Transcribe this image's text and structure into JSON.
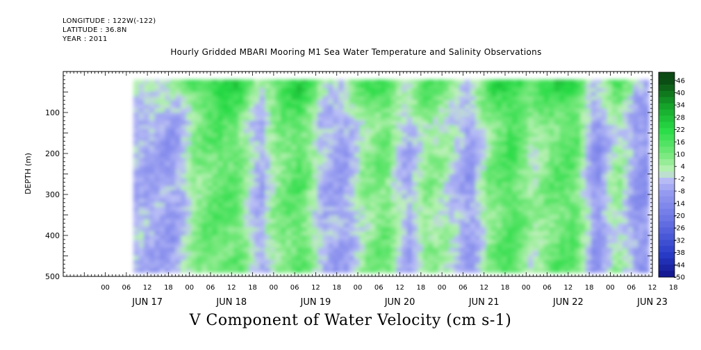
{
  "header": {
    "longitude": "LONGITUDE : 122W(-122)",
    "latitude": "LATITUDE : 36.8N",
    "year": "YEAR : 2011"
  },
  "chart_data": {
    "type": "heatmap",
    "title": "Hourly Gridded MBARI Mooring M1 Sea Water Temperature and Salinity Observations",
    "xlabel": "V Component of Water Velocity (cm s-1)",
    "ylabel": "DEPTH (m)",
    "ylim": [
      500,
      0
    ],
    "y_ticks": [
      "100",
      "200",
      "300",
      "400",
      "500"
    ],
    "x_hour_ticks": [
      "00",
      "06",
      "12",
      "18",
      "00",
      "06",
      "12",
      "18",
      "00",
      "06",
      "12",
      "18",
      "00",
      "06",
      "12",
      "18",
      "00",
      "06",
      "12",
      "18",
      "00",
      "06",
      "12",
      "18",
      "00",
      "06",
      "12",
      "18"
    ],
    "x_day_labels": [
      "JUN 17",
      "JUN 18",
      "JUN 19",
      "JUN 20",
      "JUN 21",
      "JUN 22",
      "JUN 23"
    ],
    "colorbar": {
      "levels": [
        "46",
        "40",
        "34",
        "28",
        "22",
        "16",
        "10",
        "4",
        "-2",
        "-8",
        "-14",
        "-20",
        "-26",
        "-32",
        "-38",
        "-44",
        "-50"
      ],
      "min": -50,
      "max": 50,
      "step": 3
    },
    "data_depth_range": [
      20,
      490
    ],
    "data_time_range_hours": [
      8,
      154
    ],
    "hourly_mean_velocity": [
      {
        "hour": 8,
        "v": -4
      },
      {
        "hour": 14,
        "v": -6
      },
      {
        "hour": 20,
        "v": -8
      },
      {
        "hour": 26,
        "v": 8
      },
      {
        "hour": 32,
        "v": 14
      },
      {
        "hour": 38,
        "v": 12
      },
      {
        "hour": 44,
        "v": -6
      },
      {
        "hour": 50,
        "v": 10
      },
      {
        "hour": 56,
        "v": 14
      },
      {
        "hour": 62,
        "v": -4
      },
      {
        "hour": 68,
        "v": -8
      },
      {
        "hour": 74,
        "v": 6
      },
      {
        "hour": 80,
        "v": 12
      },
      {
        "hour": 86,
        "v": -6
      },
      {
        "hour": 92,
        "v": 8
      },
      {
        "hour": 98,
        "v": 2
      },
      {
        "hour": 104,
        "v": -10
      },
      {
        "hour": 110,
        "v": 10
      },
      {
        "hour": 116,
        "v": 16
      },
      {
        "hour": 122,
        "v": 4
      },
      {
        "hour": 128,
        "v": 12
      },
      {
        "hour": 134,
        "v": 14
      },
      {
        "hour": 140,
        "v": -12
      },
      {
        "hour": 146,
        "v": 6
      },
      {
        "hour": 152,
        "v": -10
      }
    ],
    "colors": {
      "dark_green": "#0b4a13",
      "green": "#22dc3c",
      "light_green": "#b2f2b0",
      "light_blue": "#b4b8f4",
      "blue": "#8a90ee",
      "dark_blue": "#101084"
    }
  }
}
